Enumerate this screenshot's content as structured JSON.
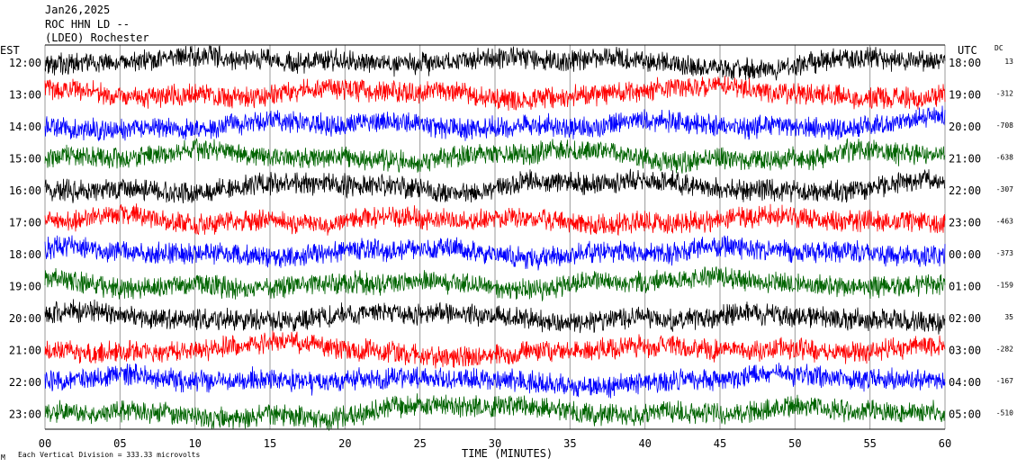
{
  "header": {
    "date": "Jan26,2025",
    "station": "ROC HHN LD --",
    "location": "(LDEO) Rochester"
  },
  "chart_data": {
    "type": "line",
    "title": "",
    "xlabel": "TIME (MINUTES)",
    "left_axis_label": "EST",
    "right_axis_label": "UTC",
    "dc_label": "DC",
    "xlim": [
      0,
      60
    ],
    "x_ticks": [
      "00",
      "05",
      "10",
      "15",
      "20",
      "25",
      "30",
      "35",
      "40",
      "45",
      "50",
      "55",
      "60"
    ],
    "footer": "Each Vertical Division =  333.33 microvolts",
    "corner_mark": "M",
    "grid": true,
    "colors": [
      "#000000",
      "#ff0000",
      "#0000ff",
      "#006400"
    ],
    "rows": [
      {
        "est": "12:00",
        "utc": "18:00",
        "dc": "13"
      },
      {
        "est": "13:00",
        "utc": "19:00",
        "dc": "-312"
      },
      {
        "est": "14:00",
        "utc": "20:00",
        "dc": "-708"
      },
      {
        "est": "15:00",
        "utc": "21:00",
        "dc": "-638"
      },
      {
        "est": "16:00",
        "utc": "22:00",
        "dc": "-307"
      },
      {
        "est": "17:00",
        "utc": "23:00",
        "dc": "-463"
      },
      {
        "est": "18:00",
        "utc": "00:00",
        "dc": "-373"
      },
      {
        "est": "19:00",
        "utc": "01:00",
        "dc": "-159"
      },
      {
        "est": "20:00",
        "utc": "02:00",
        "dc": "35"
      },
      {
        "est": "21:00",
        "utc": "03:00",
        "dc": "-282"
      },
      {
        "est": "22:00",
        "utc": "04:00",
        "dc": "-167"
      },
      {
        "est": "23:00",
        "utc": "05:00",
        "dc": "-510"
      }
    ]
  }
}
